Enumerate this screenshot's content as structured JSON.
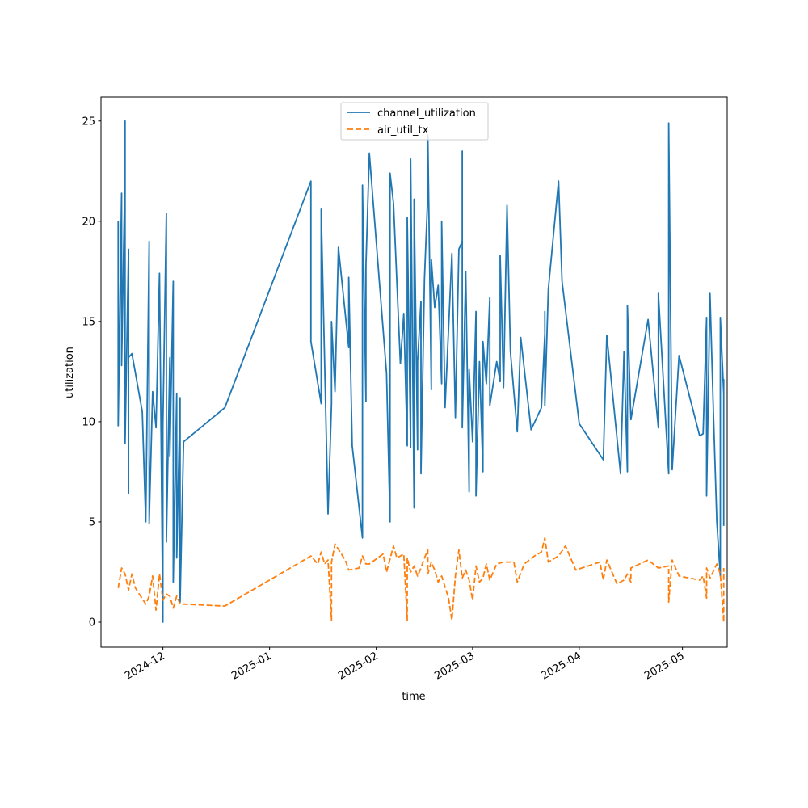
{
  "chart_data": {
    "type": "line",
    "xlabel": "time",
    "ylabel": "utilization",
    "ylim": [
      -1.25,
      26.2
    ],
    "xlim": [
      "2024-11-13",
      "2025-05-14"
    ],
    "x_ticks": [
      "2024-12",
      "2025-01",
      "2025-02",
      "2025-03",
      "2025-04",
      "2025-05"
    ],
    "y_ticks": [
      "0",
      "5",
      "10",
      "15",
      "20",
      "25"
    ],
    "legend_position": "top-center",
    "grid": false,
    "series": [
      {
        "name": "channel_utilization",
        "color": "#1f77b4",
        "style": "solid",
        "points": [
          [
            "2024-11-18",
            20.0
          ],
          [
            "2024-11-18",
            9.8
          ],
          [
            "2024-11-19",
            21.4
          ],
          [
            "2024-11-19",
            12.8
          ],
          [
            "2024-11-20",
            22.7
          ],
          [
            "2024-11-20",
            25.0
          ],
          [
            "2024-11-20",
            8.9
          ],
          [
            "2024-11-21",
            18.6
          ],
          [
            "2024-11-21",
            6.4
          ],
          [
            "2024-11-21",
            13.2
          ],
          [
            "2024-11-22",
            13.4
          ],
          [
            "2024-11-25",
            10.5
          ],
          [
            "2024-11-26",
            5.0
          ],
          [
            "2024-11-27",
            19.0
          ],
          [
            "2024-11-27",
            4.9
          ],
          [
            "2024-11-28",
            11.5
          ],
          [
            "2024-11-29",
            9.7
          ],
          [
            "2024-11-30",
            17.4
          ],
          [
            "2024-12-01",
            0.0
          ],
          [
            "2024-12-01",
            9.8
          ],
          [
            "2024-12-02",
            20.4
          ],
          [
            "2024-12-02",
            4.0
          ],
          [
            "2024-12-03",
            13.2
          ],
          [
            "2024-12-03",
            8.3
          ],
          [
            "2024-12-04",
            17.0
          ],
          [
            "2024-12-04",
            2.0
          ],
          [
            "2024-12-05",
            11.4
          ],
          [
            "2024-12-05",
            3.2
          ],
          [
            "2024-12-06",
            11.2
          ],
          [
            "2024-12-06",
            1.0
          ],
          [
            "2024-12-07",
            9.0
          ],
          [
            "2024-12-19",
            10.7
          ],
          [
            "2025-01-13",
            22.0
          ],
          [
            "2025-01-13",
            14.0
          ],
          [
            "2025-01-16",
            10.9
          ],
          [
            "2025-01-16",
            20.6
          ],
          [
            "2025-01-18",
            5.4
          ],
          [
            "2025-01-19",
            10.9
          ],
          [
            "2025-01-19",
            15.0
          ],
          [
            "2025-01-20",
            11.5
          ],
          [
            "2025-01-21",
            18.7
          ],
          [
            "2025-01-24",
            13.7
          ],
          [
            "2025-01-24",
            17.2
          ],
          [
            "2025-01-25",
            8.8
          ],
          [
            "2025-01-28",
            4.2
          ],
          [
            "2025-01-28",
            21.8
          ],
          [
            "2025-01-29",
            11.0
          ],
          [
            "2025-01-29",
            17.8
          ],
          [
            "2025-01-30",
            23.4
          ],
          [
            "2025-02-04",
            12.4
          ],
          [
            "2025-02-05",
            5.0
          ],
          [
            "2025-02-05",
            22.4
          ],
          [
            "2025-02-06",
            20.9
          ],
          [
            "2025-02-08",
            12.9
          ],
          [
            "2025-02-09",
            15.4
          ],
          [
            "2025-02-10",
            8.8
          ],
          [
            "2025-02-10",
            20.2
          ],
          [
            "2025-02-11",
            8.7
          ],
          [
            "2025-02-11",
            23.1
          ],
          [
            "2025-02-12",
            5.7
          ],
          [
            "2025-02-12",
            21.1
          ],
          [
            "2025-02-13",
            8.6
          ],
          [
            "2025-02-13",
            13.0
          ],
          [
            "2025-02-14",
            16.0
          ],
          [
            "2025-02-14",
            7.4
          ],
          [
            "2025-02-15",
            17.1
          ],
          [
            "2025-02-16",
            21.4
          ],
          [
            "2025-02-16",
            24.3
          ],
          [
            "2025-02-17",
            11.6
          ],
          [
            "2025-02-17",
            18.1
          ],
          [
            "2025-02-18",
            15.7
          ],
          [
            "2025-02-19",
            16.8
          ],
          [
            "2025-02-20",
            11.9
          ],
          [
            "2025-02-20",
            20.0
          ],
          [
            "2025-02-21",
            10.7
          ],
          [
            "2025-02-23",
            18.4
          ],
          [
            "2025-02-24",
            10.2
          ],
          [
            "2025-02-25",
            18.6
          ],
          [
            "2025-02-26",
            19.0
          ],
          [
            "2025-02-26",
            23.5
          ],
          [
            "2025-02-26",
            9.7
          ],
          [
            "2025-02-27",
            17.5
          ],
          [
            "2025-02-28",
            6.5
          ],
          [
            "2025-02-28",
            12.6
          ],
          [
            "2025-03-01",
            9.0
          ],
          [
            "2025-03-02",
            15.5
          ],
          [
            "2025-03-02",
            6.3
          ],
          [
            "2025-03-03",
            13.0
          ],
          [
            "2025-03-04",
            7.5
          ],
          [
            "2025-03-04",
            14.0
          ],
          [
            "2025-03-05",
            11.9
          ],
          [
            "2025-03-06",
            16.2
          ],
          [
            "2025-03-06",
            10.8
          ],
          [
            "2025-03-08",
            13.0
          ],
          [
            "2025-03-09",
            12.0
          ],
          [
            "2025-03-09",
            18.3
          ],
          [
            "2025-03-10",
            11.7
          ],
          [
            "2025-03-11",
            20.8
          ],
          [
            "2025-03-12",
            13.5
          ],
          [
            "2025-03-14",
            9.5
          ],
          [
            "2025-03-15",
            14.2
          ],
          [
            "2025-03-18",
            9.6
          ],
          [
            "2025-03-21",
            10.7
          ],
          [
            "2025-03-22",
            14.4
          ],
          [
            "2025-03-22",
            15.5
          ],
          [
            "2025-03-22",
            10.8
          ],
          [
            "2025-03-23",
            16.6
          ],
          [
            "2025-03-26",
            22.0
          ],
          [
            "2025-03-27",
            17.0
          ],
          [
            "2025-04-01",
            9.9
          ],
          [
            "2025-04-01",
            9.9
          ],
          [
            "2025-04-08",
            8.1
          ],
          [
            "2025-04-09",
            14.3
          ],
          [
            "2025-04-13",
            7.4
          ],
          [
            "2025-04-14",
            13.5
          ],
          [
            "2025-04-15",
            7.5
          ],
          [
            "2025-04-15",
            15.8
          ],
          [
            "2025-04-16",
            10.1
          ],
          [
            "2025-04-21",
            15.1
          ],
          [
            "2025-04-24",
            9.7
          ],
          [
            "2025-04-24",
            16.4
          ],
          [
            "2025-04-27",
            7.4
          ],
          [
            "2025-04-27",
            24.9
          ],
          [
            "2025-04-28",
            7.6
          ],
          [
            "2025-04-30",
            13.3
          ],
          [
            "2025-05-06",
            9.3
          ],
          [
            "2025-05-07",
            9.4
          ],
          [
            "2025-05-08",
            15.2
          ],
          [
            "2025-05-08",
            6.3
          ],
          [
            "2025-05-09",
            16.4
          ],
          [
            "2025-05-10",
            10.4
          ],
          [
            "2025-05-11",
            5.0
          ],
          [
            "2025-05-12",
            2.3
          ],
          [
            "2025-05-12",
            15.2
          ],
          [
            "2025-05-13",
            11.4
          ],
          [
            "2025-05-13",
            12.1
          ],
          [
            "2025-05-13",
            4.8
          ]
        ]
      },
      {
        "name": "air_util_tx",
        "color": "#ff7f0e",
        "style": "dashed",
        "points": [
          [
            "2024-11-18",
            1.7
          ],
          [
            "2024-11-19",
            2.7
          ],
          [
            "2024-11-20",
            2.4
          ],
          [
            "2024-11-21",
            1.6
          ],
          [
            "2024-11-22",
            2.4
          ],
          [
            "2024-11-23",
            1.7
          ],
          [
            "2024-11-26",
            0.9
          ],
          [
            "2024-11-27",
            1.3
          ],
          [
            "2024-11-28",
            2.3
          ],
          [
            "2024-11-29",
            0.6
          ],
          [
            "2024-11-30",
            2.4
          ],
          [
            "2024-12-01",
            1.1
          ],
          [
            "2024-12-02",
            1.4
          ],
          [
            "2024-12-03",
            1.3
          ],
          [
            "2024-12-04",
            0.7
          ],
          [
            "2024-12-05",
            1.3
          ],
          [
            "2024-12-06",
            0.9
          ],
          [
            "2024-12-07",
            0.9
          ],
          [
            "2024-12-19",
            0.8
          ],
          [
            "2025-01-13",
            3.3
          ],
          [
            "2025-01-15",
            2.9
          ],
          [
            "2025-01-16",
            3.5
          ],
          [
            "2025-01-17",
            2.9
          ],
          [
            "2025-01-18",
            3.1
          ],
          [
            "2025-01-19",
            0.1
          ],
          [
            "2025-01-19",
            3.0
          ],
          [
            "2025-01-20",
            3.9
          ],
          [
            "2025-01-23",
            3.1
          ],
          [
            "2025-01-24",
            2.6
          ],
          [
            "2025-01-27",
            2.7
          ],
          [
            "2025-01-28",
            3.3
          ],
          [
            "2025-01-29",
            2.9
          ],
          [
            "2025-01-30",
            2.9
          ],
          [
            "2025-02-03",
            3.4
          ],
          [
            "2025-02-04",
            2.5
          ],
          [
            "2025-02-06",
            3.8
          ],
          [
            "2025-02-07",
            3.2
          ],
          [
            "2025-02-09",
            3.4
          ],
          [
            "2025-02-10",
            0.1
          ],
          [
            "2025-02-10",
            3.2
          ],
          [
            "2025-02-11",
            2.5
          ],
          [
            "2025-02-12",
            2.8
          ],
          [
            "2025-02-13",
            2.3
          ],
          [
            "2025-02-14",
            2.7
          ],
          [
            "2025-02-15",
            3.2
          ],
          [
            "2025-02-16",
            3.6
          ],
          [
            "2025-02-16",
            2.4
          ],
          [
            "2025-02-17",
            3.0
          ],
          [
            "2025-02-18",
            2.6
          ],
          [
            "2025-02-19",
            2.0
          ],
          [
            "2025-02-20",
            2.3
          ],
          [
            "2025-02-22",
            1.2
          ],
          [
            "2025-02-23",
            0.1
          ],
          [
            "2025-02-24",
            2.3
          ],
          [
            "2025-02-25",
            3.6
          ],
          [
            "2025-02-26",
            2.2
          ],
          [
            "2025-02-27",
            2.6
          ],
          [
            "2025-02-28",
            2.1
          ],
          [
            "2025-03-01",
            1.1
          ],
          [
            "2025-03-02",
            2.8
          ],
          [
            "2025-03-03",
            2.0
          ],
          [
            "2025-03-04",
            2.2
          ],
          [
            "2025-03-05",
            2.9
          ],
          [
            "2025-03-06",
            2.1
          ],
          [
            "2025-03-07",
            2.5
          ],
          [
            "2025-03-08",
            2.9
          ],
          [
            "2025-03-10",
            3.0
          ],
          [
            "2025-03-13",
            3.0
          ],
          [
            "2025-03-14",
            2.0
          ],
          [
            "2025-03-16",
            2.9
          ],
          [
            "2025-03-19",
            3.3
          ],
          [
            "2025-03-21",
            3.5
          ],
          [
            "2025-03-22",
            4.2
          ],
          [
            "2025-03-23",
            3.0
          ],
          [
            "2025-03-26",
            3.3
          ],
          [
            "2025-03-28",
            3.8
          ],
          [
            "2025-03-31",
            2.6
          ],
          [
            "2025-04-07",
            3.0
          ],
          [
            "2025-04-08",
            2.1
          ],
          [
            "2025-04-09",
            3.1
          ],
          [
            "2025-04-12",
            1.9
          ],
          [
            "2025-04-14",
            2.1
          ],
          [
            "2025-04-15",
            2.4
          ],
          [
            "2025-04-16",
            2.0
          ],
          [
            "2025-04-16",
            2.7
          ],
          [
            "2025-04-21",
            3.1
          ],
          [
            "2025-04-24",
            2.7
          ],
          [
            "2025-04-27",
            2.8
          ],
          [
            "2025-04-27",
            1.0
          ],
          [
            "2025-04-28",
            3.1
          ],
          [
            "2025-04-29",
            2.7
          ],
          [
            "2025-04-30",
            2.3
          ],
          [
            "2025-05-06",
            2.1
          ],
          [
            "2025-05-07",
            2.3
          ],
          [
            "2025-05-08",
            1.2
          ],
          [
            "2025-05-08",
            2.7
          ],
          [
            "2025-05-09",
            2.2
          ],
          [
            "2025-05-11",
            2.9
          ],
          [
            "2025-05-12",
            2.4
          ],
          [
            "2025-05-13",
            0.0
          ],
          [
            "2025-05-13",
            2.7
          ]
        ]
      }
    ]
  }
}
